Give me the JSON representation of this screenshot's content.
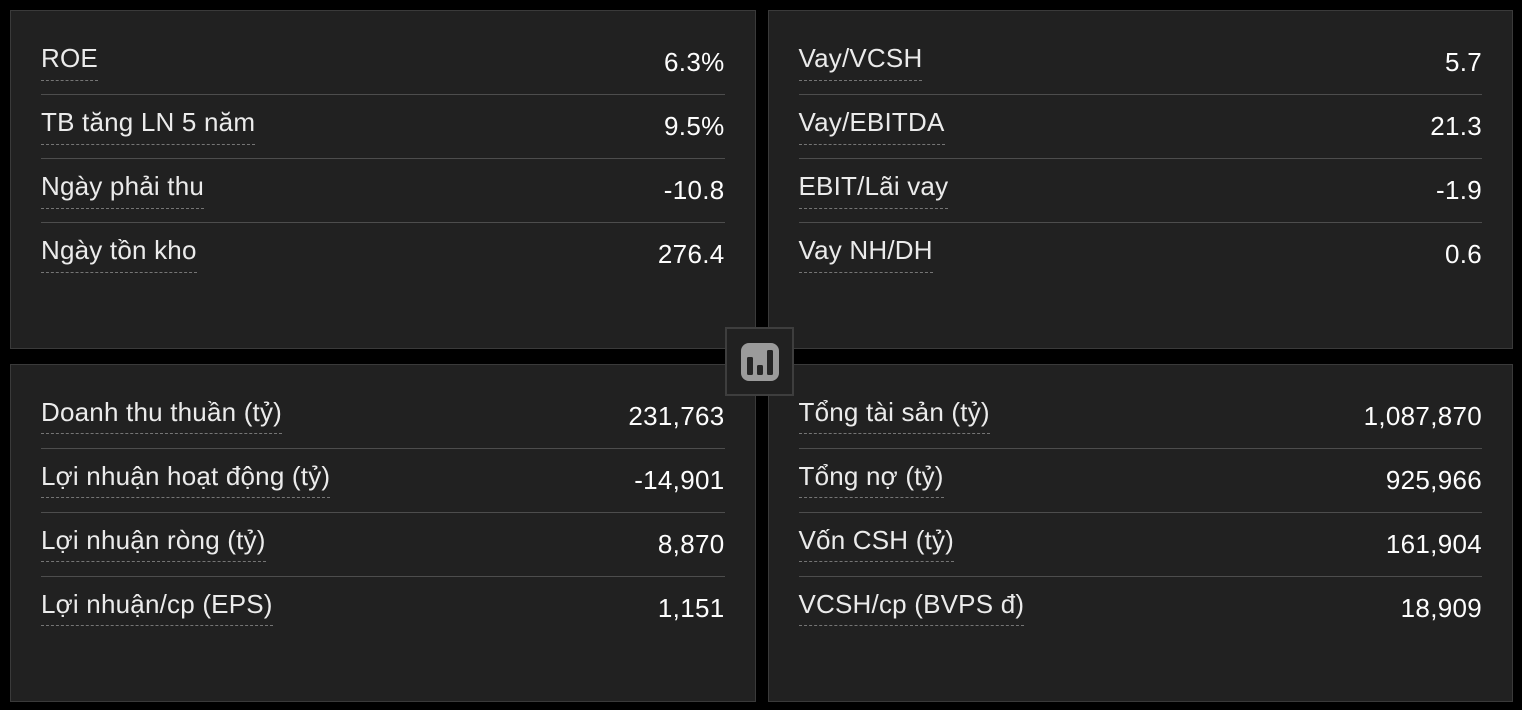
{
  "colors": {
    "page_background": "#000000",
    "panel_background": "#212121",
    "panel_border": "#3a3a3a",
    "row_separator": "#4d4d4d",
    "label_underline": "#757575",
    "label_text": "#ebebeb",
    "value_text": "#fdfdfd",
    "icon_fill": "#9b9b9b",
    "icon_bars": "#262626"
  },
  "panels": [
    {
      "name": "profitability-ratios",
      "rows": [
        {
          "label": "ROE",
          "value": "6.3%"
        },
        {
          "label": "TB tăng LN 5 năm",
          "value": "9.5%"
        },
        {
          "label": "Ngày phải thu",
          "value": "-10.8"
        },
        {
          "label": "Ngày tồn kho",
          "value": "276.4"
        }
      ]
    },
    {
      "name": "leverage-ratios",
      "rows": [
        {
          "label": "Vay/VCSH",
          "value": "5.7"
        },
        {
          "label": "Vay/EBITDA",
          "value": "21.3"
        },
        {
          "label": "EBIT/Lãi vay",
          "value": "-1.9"
        },
        {
          "label": "Vay NH/DH",
          "value": "0.6"
        }
      ]
    },
    {
      "name": "income-statement",
      "rows": [
        {
          "label": "Doanh thu thuần (tỷ)",
          "value": "231,763"
        },
        {
          "label": "Lợi nhuận hoạt động (tỷ)",
          "value": "-14,901"
        },
        {
          "label": "Lợi nhuận ròng (tỷ)",
          "value": "8,870"
        },
        {
          "label": "Lợi nhuận/cp (EPS)",
          "value": "1,151"
        }
      ]
    },
    {
      "name": "balance-sheet",
      "rows": [
        {
          "label": "Tổng tài sản (tỷ)",
          "value": "1,087,870"
        },
        {
          "label": "Tổng nợ (tỷ)",
          "value": "925,966"
        },
        {
          "label": "Vốn CSH (tỷ)",
          "value": "161,904"
        },
        {
          "label": "VCSH/cp (BVPS đ)",
          "value": "18,909"
        }
      ]
    }
  ],
  "center_button": {
    "icon": "bar-chart-icon"
  }
}
